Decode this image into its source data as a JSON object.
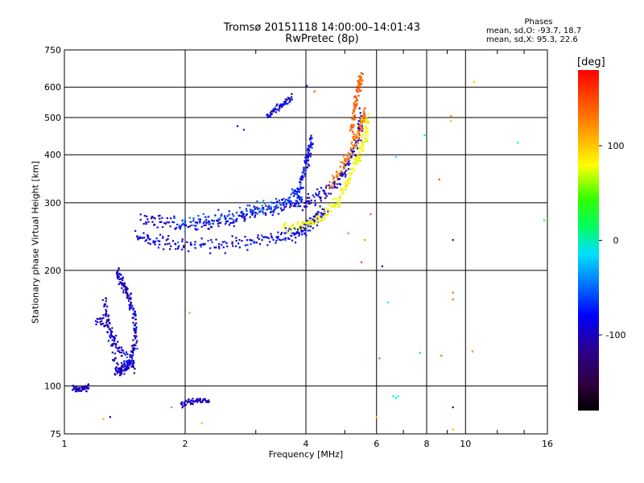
{
  "title_line1": "Tromsø 20151118 14:00:00–14:01:43",
  "title_line2": "RwPretec (8p)",
  "stats": {
    "header": "Phases",
    "line_o": "mean, sd,O: -93.7, 18.7",
    "line_x": "mean, sd,X:  95.3, 22.6"
  },
  "colorbar": {
    "unit": "[deg]",
    "min": -180,
    "max": 180,
    "ticks": [
      "100",
      "0",
      "-100"
    ],
    "tick_values": [
      100,
      0,
      -100
    ]
  },
  "chart_data": {
    "type": "scatter",
    "title": "Tromsø 20151118 14:00:00–14:01:43",
    "subtitle": "RwPretec (8p)",
    "xlabel": "Frequency [MHz]",
    "ylabel": "Stationary phase Virtual Height [km]",
    "x_scale": "log",
    "y_scale": "log",
    "xlim": [
      1,
      16
    ],
    "ylim": [
      75,
      750
    ],
    "x_ticks": [
      1,
      2,
      4,
      6,
      8,
      10,
      16
    ],
    "x_tick_labels": [
      "1",
      "2",
      "4",
      "6",
      "8",
      "10",
      "16"
    ],
    "y_ticks": [
      75,
      100,
      200,
      300,
      400,
      500,
      600,
      750
    ],
    "y_tick_labels": [
      "75",
      "100",
      "200",
      "300",
      "400",
      "500",
      "600",
      "750"
    ],
    "grid": true,
    "color_variable": "phase [deg]",
    "traces": [
      {
        "x": [
          1.5,
          1.7,
          2.0,
          2.5,
          3.0,
          3.5,
          3.8,
          4.0,
          4.2,
          4.5
        ],
        "y": [
          245,
          238,
          232,
          233,
          238,
          245,
          250,
          258,
          268,
          285
        ],
        "phase": -105,
        "spread": 0.06
      },
      {
        "x": [
          1.55,
          1.8,
          2.2,
          2.6,
          3.0,
          3.5,
          4.0,
          4.4,
          4.8,
          5.1,
          5.4,
          5.5
        ],
        "y": [
          270,
          265,
          262,
          270,
          282,
          292,
          302,
          318,
          345,
          380,
          430,
          520
        ],
        "phase": -110,
        "spread": 0.06
      },
      {
        "x": [
          1.9,
          2.3,
          2.8,
          3.2,
          3.6,
          3.9
        ],
        "y": [
          262,
          272,
          285,
          290,
          305,
          322
        ],
        "phase": -90,
        "spread": 0.06
      },
      {
        "x": [
          3.8,
          3.95,
          4.05,
          4.15
        ],
        "y": [
          300,
          360,
          400,
          440
        ],
        "phase": -100,
        "spread": 0.05
      },
      {
        "x": [
          3.5,
          4.0,
          4.4,
          4.8,
          5.1,
          5.4,
          5.6,
          5.7
        ],
        "y": [
          258,
          262,
          275,
          300,
          340,
          390,
          440,
          500
        ],
        "phase": 100,
        "spread": 0.05
      },
      {
        "x": [
          4.6,
          5.0,
          5.3,
          5.5,
          5.6
        ],
        "y": [
          330,
          380,
          430,
          480,
          520
        ],
        "phase": 140,
        "spread": 0.05
      },
      {
        "x": [
          5.2,
          5.3,
          5.4,
          5.5
        ],
        "y": [
          450,
          520,
          600,
          640
        ],
        "phase": 150,
        "spread": 0.05
      },
      {
        "x": [
          3.2,
          3.45,
          3.7
        ],
        "y": [
          505,
          535,
          565
        ],
        "phase": -105,
        "spread": 0.03
      },
      {
        "x": [
          1.35,
          1.4,
          1.45,
          1.5,
          1.5,
          1.45,
          1.4,
          1.35,
          1.3,
          1.25
        ],
        "y": [
          200,
          185,
          170,
          150,
          130,
          115,
          110,
          108,
          140,
          170
        ],
        "phase": -110,
        "spread": 0.05
      },
      {
        "x": [
          1.2,
          1.3,
          1.4,
          1.5
        ],
        "y": [
          150,
          140,
          120,
          110
        ],
        "phase": -108,
        "spread": 0.05
      },
      {
        "x": [
          1.05,
          1.1,
          1.15
        ],
        "y": [
          99,
          98,
          100
        ],
        "phase": -112,
        "spread": 0.03
      },
      {
        "x": [
          1.95,
          2.1,
          2.3
        ],
        "y": [
          90,
          91,
          92
        ],
        "phase": -110,
        "spread": 0.03
      }
    ],
    "scatter_points": [
      {
        "x": 4.2,
        "y": 585,
        "phase": 160
      },
      {
        "x": 4.02,
        "y": 605,
        "phase": -105
      },
      {
        "x": 7.9,
        "y": 450,
        "phase": -15
      },
      {
        "x": 13.5,
        "y": 430,
        "phase": -25
      },
      {
        "x": 15.7,
        "y": 270,
        "phase": 20
      },
      {
        "x": 10.5,
        "y": 620,
        "phase": 120
      },
      {
        "x": 9.2,
        "y": 505,
        "phase": 135
      },
      {
        "x": 9.2,
        "y": 490,
        "phase": 125
      },
      {
        "x": 9.3,
        "y": 240,
        "phase": -120
      },
      {
        "x": 9.3,
        "y": 175,
        "phase": 150
      },
      {
        "x": 9.3,
        "y": 168,
        "phase": 145
      },
      {
        "x": 8.6,
        "y": 345,
        "phase": 160
      },
      {
        "x": 6.7,
        "y": 395,
        "phase": -35
      },
      {
        "x": 6.2,
        "y": 205,
        "phase": -120
      },
      {
        "x": 6.4,
        "y": 165,
        "phase": -40
      },
      {
        "x": 6.1,
        "y": 118,
        "phase": 150
      },
      {
        "x": 6.6,
        "y": 94,
        "phase": -40
      },
      {
        "x": 6.7,
        "y": 93,
        "phase": -35
      },
      {
        "x": 6.8,
        "y": 94,
        "phase": -30
      },
      {
        "x": 7.7,
        "y": 122,
        "phase": -45
      },
      {
        "x": 8.7,
        "y": 120,
        "phase": 150
      },
      {
        "x": 10.4,
        "y": 123,
        "phase": 140
      },
      {
        "x": 9.3,
        "y": 88,
        "phase": -120
      },
      {
        "x": 9.3,
        "y": 77,
        "phase": 125
      },
      {
        "x": 6.0,
        "y": 83,
        "phase": 120
      },
      {
        "x": 5.8,
        "y": 280,
        "phase": 150
      },
      {
        "x": 5.6,
        "y": 240,
        "phase": 135
      },
      {
        "x": 5.1,
        "y": 250,
        "phase": 145
      },
      {
        "x": 5.5,
        "y": 210,
        "phase": 160
      },
      {
        "x": 2.05,
        "y": 155,
        "phase": 130
      },
      {
        "x": 2.2,
        "y": 80,
        "phase": 120
      },
      {
        "x": 1.25,
        "y": 82,
        "phase": 125
      },
      {
        "x": 1.85,
        "y": 88,
        "phase": 140
      },
      {
        "x": 1.3,
        "y": 83,
        "phase": -120
      },
      {
        "x": 2.7,
        "y": 475,
        "phase": -100
      },
      {
        "x": 2.8,
        "y": 465,
        "phase": -95
      }
    ]
  }
}
